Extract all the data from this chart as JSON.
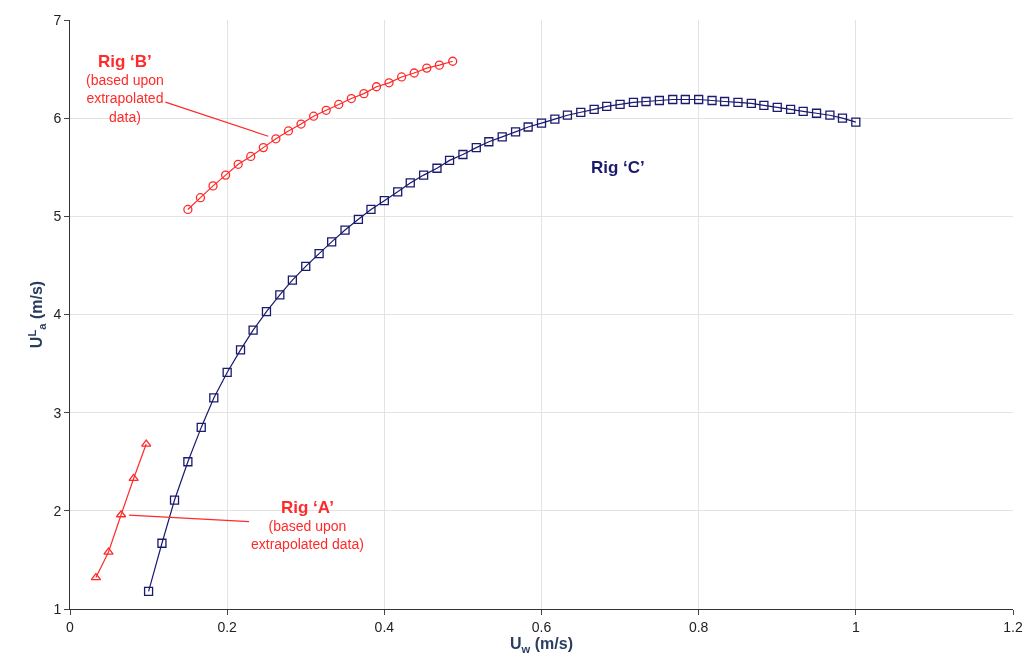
{
  "chart_data": {
    "type": "line",
    "xlabel": "U$_{w}$ (m/s)",
    "ylabel": "U$^{L}$$_{a}$ (m/s)",
    "xlim": [
      0,
      1.2
    ],
    "xticks": [
      0,
      0.2,
      0.4,
      0.6,
      0.8,
      1,
      1.2
    ],
    "ylim": [
      1,
      7
    ],
    "yticks": [
      1,
      2,
      3,
      4,
      5,
      6,
      7
    ],
    "grid": true,
    "series": [
      {
        "color": "#ff2a2a",
        "marker": "triangle",
        "x": [
          0.033,
          0.049,
          0.065,
          0.081,
          0.097
        ],
        "values": [
          1.32,
          1.58,
          1.96,
          2.33,
          2.68
        ]
      },
      {
        "color": "#ff2a2a",
        "marker": "circle",
        "x": [
          0.15,
          0.166,
          0.182,
          0.198,
          0.214,
          0.23,
          0.246,
          0.262,
          0.278,
          0.294,
          0.31,
          0.326,
          0.342,
          0.358,
          0.374,
          0.39,
          0.406,
          0.422,
          0.438,
          0.454,
          0.47,
          0.487
        ],
        "values": [
          5.07,
          5.19,
          5.31,
          5.42,
          5.53,
          5.61,
          5.7,
          5.79,
          5.87,
          5.94,
          6.02,
          6.08,
          6.14,
          6.2,
          6.25,
          6.32,
          6.36,
          6.42,
          6.46,
          6.51,
          6.54,
          6.58
        ]
      },
      {
        "name": "Rig ‘C’",
        "color": "#1a1a6e",
        "marker": "square",
        "x": [
          0.1,
          0.117,
          0.133,
          0.15,
          0.167,
          0.183,
          0.2,
          0.217,
          0.233,
          0.25,
          0.267,
          0.283,
          0.3,
          0.317,
          0.333,
          0.35,
          0.367,
          0.383,
          0.4,
          0.417,
          0.433,
          0.45,
          0.467,
          0.483,
          0.5,
          0.517,
          0.533,
          0.55,
          0.567,
          0.583,
          0.6,
          0.617,
          0.633,
          0.65,
          0.667,
          0.683,
          0.7,
          0.717,
          0.733,
          0.75,
          0.767,
          0.783,
          0.8,
          0.817,
          0.833,
          0.85,
          0.867,
          0.883,
          0.9,
          0.917,
          0.933,
          0.95,
          0.967,
          0.983,
          1.0
        ],
        "values": [
          1.18,
          1.67,
          2.11,
          2.5,
          2.85,
          3.15,
          3.41,
          3.64,
          3.84,
          4.03,
          4.2,
          4.35,
          4.49,
          4.62,
          4.74,
          4.86,
          4.97,
          5.07,
          5.16,
          5.25,
          5.34,
          5.42,
          5.49,
          5.57,
          5.63,
          5.7,
          5.76,
          5.81,
          5.86,
          5.91,
          5.95,
          5.99,
          6.03,
          6.06,
          6.09,
          6.12,
          6.14,
          6.16,
          6.17,
          6.18,
          6.19,
          6.19,
          6.19,
          6.18,
          6.17,
          6.16,
          6.15,
          6.13,
          6.11,
          6.09,
          6.07,
          6.05,
          6.03,
          6.0,
          5.96
        ]
      }
    ],
    "annotations": [
      {
        "text": "Rig ‘A’\n(based upon\nextrapolated data)",
        "x": 0.065,
        "y": 1.96
      },
      {
        "text": "Rig ‘B’\n(based upon\nextrapolated\ndata)",
        "x": 0.262,
        "y": 5.79
      }
    ]
  }
}
